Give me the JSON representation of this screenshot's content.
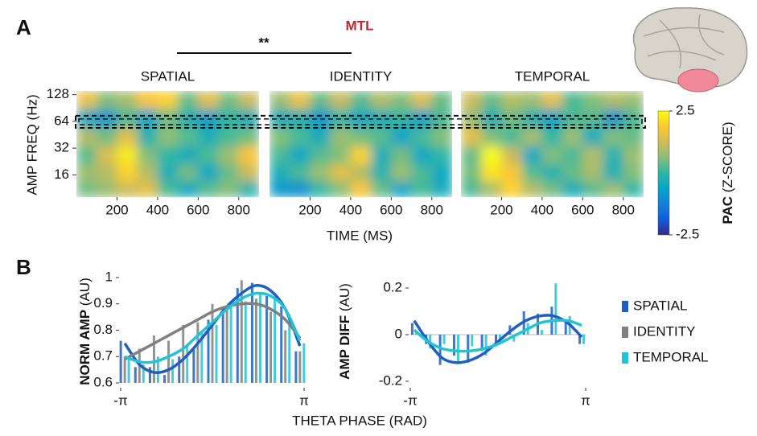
{
  "chart_data": [
    {
      "type": "heatmap",
      "panel_label": "A",
      "title": "MTL",
      "annotation": "**",
      "xlabel": "TIME (MS)",
      "ylabel": "AMP FREQ (Hz)",
      "x": [
        50,
        150,
        250,
        350,
        450,
        550,
        650,
        750,
        850
      ],
      "y": [
        11,
        17,
        27,
        43,
        70,
        115
      ],
      "xlim": [
        0,
        900
      ],
      "xticks": [
        200,
        400,
        600,
        800
      ],
      "ylim": [
        9,
        141
      ],
      "yticks": [
        16,
        32,
        64,
        128
      ],
      "log_y": true,
      "highlight": [
        54,
        74
      ],
      "series": [
        {
          "name": "SPATIAL",
          "values": [
            [
              0.5,
              0.8,
              1.2,
              1.5,
              0.2,
              -0.5,
              0.3,
              0.6,
              -0.2
            ],
            [
              0.8,
              1.0,
              2.0,
              1.0,
              -0.3,
              0.5,
              -0.5,
              0.4,
              1.2
            ],
            [
              0.3,
              1.4,
              2.3,
              0.6,
              0.0,
              -0.4,
              0.2,
              0.8,
              1.8
            ],
            [
              1.0,
              0.5,
              1.5,
              -0.2,
              0.7,
              0.3,
              -0.3,
              0.2,
              0.5
            ],
            [
              -0.5,
              -0.8,
              0.2,
              -0.6,
              0.5,
              -0.2,
              -0.7,
              0.0,
              -0.3
            ],
            [
              1.6,
              0.6,
              0.9,
              1.8,
              2.0,
              0.4,
              1.5,
              0.5,
              1.2
            ]
          ]
        },
        {
          "name": "IDENTITY",
          "values": [
            [
              -0.8,
              -1.0,
              0.0,
              0.6,
              1.8,
              0.4,
              -0.6,
              0.2,
              -0.4
            ],
            [
              -0.3,
              0.2,
              0.8,
              1.5,
              1.0,
              -0.2,
              0.8,
              0.2,
              -0.5
            ],
            [
              0.2,
              -0.5,
              0.3,
              0.6,
              2.0,
              -0.3,
              0.5,
              -0.5,
              0.0
            ],
            [
              0.6,
              0.2,
              -0.4,
              0.8,
              0.5,
              0.3,
              -0.6,
              0.2,
              0.6
            ],
            [
              -0.4,
              -0.2,
              -0.8,
              0.0,
              -0.5,
              -0.3,
              0.0,
              -0.6,
              0.2
            ],
            [
              0.8,
              1.6,
              0.4,
              1.2,
              0.3,
              1.0,
              0.6,
              1.4,
              0.4
            ]
          ]
        },
        {
          "name": "TEMPORAL",
          "values": [
            [
              0.2,
              0.9,
              2.0,
              1.0,
              0.5,
              -0.4,
              0.3,
              0.8,
              0.0
            ],
            [
              0.5,
              2.2,
              1.8,
              0.3,
              -0.2,
              0.4,
              0.9,
              -0.3,
              0.6
            ],
            [
              0.4,
              2.5,
              1.2,
              -0.5,
              0.6,
              0.2,
              1.0,
              -0.2,
              0.8
            ],
            [
              1.5,
              0.6,
              0.2,
              0.9,
              0.0,
              0.8,
              -0.4,
              0.6,
              0.4
            ],
            [
              0.8,
              -0.3,
              0.5,
              -0.2,
              -0.6,
              0.2,
              0.3,
              -0.8,
              0.2
            ],
            [
              1.2,
              0.4,
              1.0,
              0.8,
              1.5,
              0.2,
              0.6,
              1.0,
              0.8
            ]
          ]
        }
      ],
      "colorbar": {
        "label": "PAC",
        "sublabel": "(Z-SCORE)",
        "clim": [
          -2.5,
          2.5
        ],
        "ticks": [
          2.5,
          -2.5
        ]
      }
    },
    {
      "type": "combo",
      "panel_label": "B",
      "ylabel": "NORM AMP",
      "ylabel_unit": "(AU)",
      "xlabel": "THETA PHASE (RAD)",
      "x": [
        -3,
        -2.5,
        -2,
        -1.5,
        -1,
        -0.5,
        0,
        0.5,
        1,
        1.5,
        2,
        2.5,
        3
      ],
      "xlim": [
        -3.14159,
        3.14159
      ],
      "xticks": [
        {
          "value": -3.14159,
          "label": "-π"
        },
        {
          "value": 3.14159,
          "label": "π"
        }
      ],
      "ylim": [
        0.6,
        1
      ],
      "yticks": [
        0.6,
        0.7,
        0.8,
        0.9,
        1
      ],
      "legend": "right",
      "series": [
        {
          "name": "SPATIAL",
          "color": "#1f5fbf",
          "values": [
            0.76,
            0.66,
            0.66,
            0.63,
            0.7,
            0.73,
            0.84,
            0.88,
            0.96,
            0.98,
            0.93,
            0.89,
            0.72
          ],
          "fit": [
            0.75,
            0.67,
            0.64,
            0.65,
            0.69,
            0.75,
            0.82,
            0.89,
            0.94,
            0.97,
            0.95,
            0.88,
            0.74
          ]
        },
        {
          "name": "IDENTITY",
          "color": "#808080",
          "values": [
            0.7,
            0.73,
            0.78,
            0.76,
            0.82,
            0.83,
            0.9,
            0.88,
            0.99,
            0.92,
            0.87,
            0.8,
            0.72
          ],
          "fit": [
            0.69,
            0.72,
            0.75,
            0.78,
            0.81,
            0.84,
            0.87,
            0.89,
            0.9,
            0.9,
            0.88,
            0.84,
            0.77
          ]
        },
        {
          "name": "TEMPORAL",
          "color": "#22c4d4",
          "values": [
            0.7,
            0.67,
            0.7,
            0.69,
            0.74,
            0.79,
            0.82,
            0.9,
            0.91,
            0.94,
            0.92,
            0.86,
            0.75
          ],
          "fit": [
            0.7,
            0.68,
            0.68,
            0.7,
            0.73,
            0.78,
            0.83,
            0.88,
            0.92,
            0.94,
            0.93,
            0.88,
            0.76
          ]
        }
      ]
    },
    {
      "type": "combo",
      "ylabel": "AMP DIFF",
      "ylabel_unit": "(AU)",
      "x": [
        -3,
        -2.5,
        -2,
        -1.5,
        -1,
        -0.5,
        0,
        0.5,
        1,
        1.5,
        2,
        2.5,
        3
      ],
      "xlim": [
        -3.14159,
        3.14159
      ],
      "xticks": [
        {
          "value": -3.14159,
          "label": "-π"
        },
        {
          "value": 3.14159,
          "label": "π"
        }
      ],
      "ylim": [
        -0.2,
        0.25
      ],
      "yticks": [
        -0.2,
        0,
        0.2
      ],
      "series": [
        {
          "color": "#1f5fbf",
          "values": [
            0.05,
            -0.04,
            -0.13,
            -0.09,
            -0.12,
            -0.07,
            -0.05,
            0.04,
            0.1,
            0.09,
            0.12,
            0.06,
            -0.04
          ],
          "fit": [
            0.06,
            -0.03,
            -0.1,
            -0.12,
            -0.11,
            -0.08,
            -0.03,
            0.02,
            0.06,
            0.08,
            0.08,
            0.05,
            -0.01
          ]
        },
        {
          "color": "#22c4d4",
          "values": [
            0.01,
            -0.06,
            -0.04,
            -0.12,
            -0.05,
            -0.09,
            -0.02,
            -0.03,
            0.05,
            0.02,
            0.22,
            0.08,
            -0.04
          ],
          "fit": [
            0.02,
            -0.03,
            -0.06,
            -0.07,
            -0.07,
            -0.06,
            -0.04,
            -0.01,
            0.02,
            0.05,
            0.06,
            0.06,
            0.04
          ]
        }
      ]
    }
  ]
}
